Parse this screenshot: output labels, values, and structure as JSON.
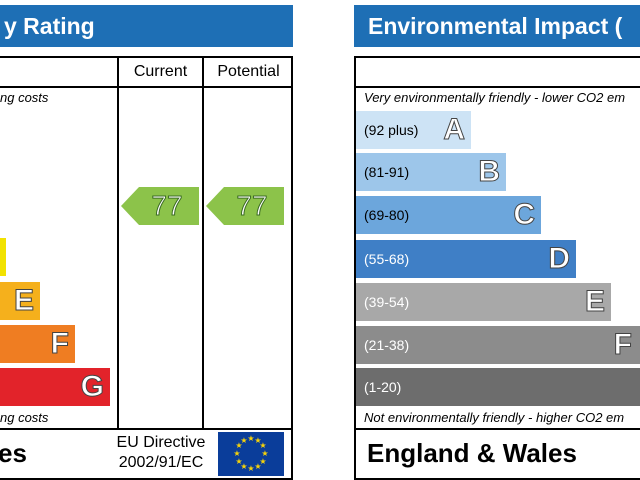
{
  "energy": {
    "title": "y Rating",
    "col_current": "Current",
    "col_potential": "Potential",
    "top_note": "ng costs",
    "bottom_note": "ng costs",
    "bands": [
      {
        "letter": "",
        "color": "#f2e200"
      },
      {
        "letter": "E",
        "color": "#f5b01c"
      },
      {
        "letter": "F",
        "color": "#ef7d22"
      },
      {
        "letter": "G",
        "color": "#e2232a"
      }
    ],
    "current_value": "77",
    "potential_value": "77",
    "arrow_color": "#8cc34a",
    "footer_region": "es",
    "directive_line1": "EU Directive",
    "directive_line2": "2002/91/EC",
    "flag_color": "#0a3d9a"
  },
  "environmental": {
    "title": "Environmental Impact (",
    "top_note": "Very environmentally friendly - lower CO2 em",
    "bottom_note": "Not environmentally friendly - higher CO2 em",
    "bands": [
      {
        "range": "(92 plus)",
        "letter": "A",
        "color": "#cde3f5"
      },
      {
        "range": "(81-91)",
        "letter": "B",
        "color": "#9dc6ea"
      },
      {
        "range": "(69-80)",
        "letter": "C",
        "color": "#6ca6dc"
      },
      {
        "range": "(55-68)",
        "letter": "D",
        "color": "#3f7fc6"
      },
      {
        "range": "(39-54)",
        "letter": "E",
        "color": "#a8a8a8"
      },
      {
        "range": "(21-38)",
        "letter": "F",
        "color": "#8c8c8c"
      },
      {
        "range": "(1-20)",
        "letter": "",
        "color": "#6d6d6d"
      }
    ],
    "footer_region": "England & Wales"
  }
}
